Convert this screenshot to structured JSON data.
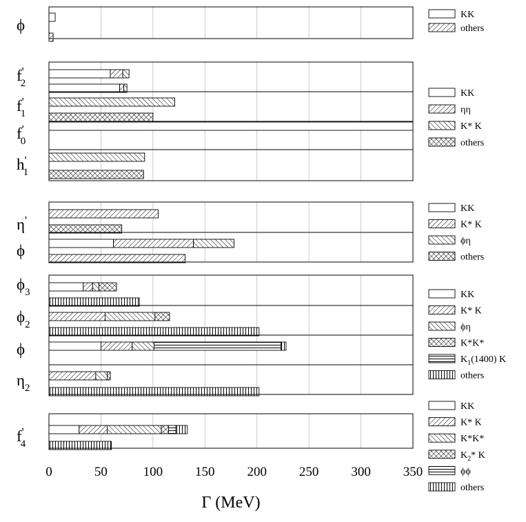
{
  "chart_data": {
    "type": "bar",
    "orientation": "horizontal stacked",
    "xlabel": "Γ (MeV)",
    "xlim": [
      0,
      350
    ],
    "xticks": [
      0,
      50,
      100,
      150,
      200,
      250,
      300,
      350
    ],
    "grid": true,
    "panels": [
      {
        "id": "p1",
        "legend": [
          {
            "label": "KK",
            "pattern": "empty"
          },
          {
            "label": "others",
            "pattern": "diag"
          }
        ],
        "groups": [
          {
            "label": "ϕ",
            "bars": [
              [
                6,
                0
              ],
              [
                0,
                4
              ]
            ]
          }
        ]
      },
      {
        "id": "p2",
        "legend": [
          {
            "label": "KK",
            "pattern": "empty"
          },
          {
            "label": "ηη",
            "pattern": "diag"
          },
          {
            "label": "K* K",
            "pattern": "back"
          },
          {
            "label": "others",
            "pattern": "cross"
          }
        ],
        "groups": [
          {
            "label": "f2'",
            "bars": [
              [
                59,
                12,
                6,
                0
              ],
              [
                68,
                4,
                3,
                0
              ]
            ]
          },
          {
            "label": "f1'",
            "bars": [
              [
                0,
                0,
                121,
                0
              ],
              [
                0,
                0,
                0,
                100
              ]
            ]
          },
          {
            "label": "f0'",
            "bars": [
              [
                350,
                0,
                0,
                0
              ]
            ]
          },
          {
            "label": "h1'",
            "bars": [
              [
                0,
                0,
                92,
                0
              ],
              [
                0,
                0,
                0,
                91
              ]
            ]
          }
        ]
      },
      {
        "id": "p3",
        "legend": [
          {
            "label": "KK",
            "pattern": "empty"
          },
          {
            "label": "K* K",
            "pattern": "diag"
          },
          {
            "label": "ϕη",
            "pattern": "back"
          },
          {
            "label": "others",
            "pattern": "cross"
          }
        ],
        "groups": [
          {
            "label": "η'",
            "bars": [
              [
                0,
                105,
                0,
                0
              ],
              [
                0,
                0,
                0,
                70
              ]
            ]
          },
          {
            "label": "ϕ",
            "bars": [
              [
                62,
                77,
                39,
                0
              ],
              [
                0,
                131,
                0,
                0
              ]
            ]
          }
        ]
      },
      {
        "id": "p4",
        "legend": [
          {
            "label": "KK",
            "pattern": "empty"
          },
          {
            "label": "K* K",
            "pattern": "diag"
          },
          {
            "label": "ϕη",
            "pattern": "back"
          },
          {
            "label": "K*K*",
            "pattern": "cross"
          },
          {
            "label": "K1(1400) K",
            "pattern": "horiz"
          },
          {
            "label": "others",
            "pattern": "vert"
          }
        ],
        "groups": [
          {
            "label": "ϕ3",
            "bars": [
              [
                33,
                9,
                6,
                17,
                0,
                0
              ],
              [
                0,
                0,
                0,
                0,
                0,
                87
              ]
            ]
          },
          {
            "label": "ϕ2",
            "bars": [
              [
                0,
                54,
                48,
                14,
                0,
                0
              ],
              [
                0,
                0,
                0,
                0,
                0,
                202
              ]
            ]
          },
          {
            "label": "ϕ",
            "bars": [
              [
                50,
                30,
                21,
                0,
                122,
                5
              ]
            ]
          },
          {
            "label": "η2",
            "bars": [
              [
                0,
                45,
                11,
                3,
                0,
                0
              ],
              [
                0,
                0,
                0,
                0,
                0,
                202
              ]
            ]
          }
        ]
      },
      {
        "id": "p5",
        "legend": [
          {
            "label": "KK",
            "pattern": "empty"
          },
          {
            "label": "K* K",
            "pattern": "diag"
          },
          {
            "label": "K*K*",
            "pattern": "back"
          },
          {
            "label": "K2* K",
            "pattern": "cross"
          },
          {
            "label": "ϕϕ",
            "pattern": "horiz"
          },
          {
            "label": "others",
            "pattern": "vert"
          }
        ],
        "groups": [
          {
            "label": "f4'",
            "bars": [
              [
                29,
                27,
                52,
                7,
                7,
                11
              ],
              [
                0,
                0,
                0,
                0,
                0,
                60
              ]
            ]
          }
        ]
      }
    ]
  }
}
